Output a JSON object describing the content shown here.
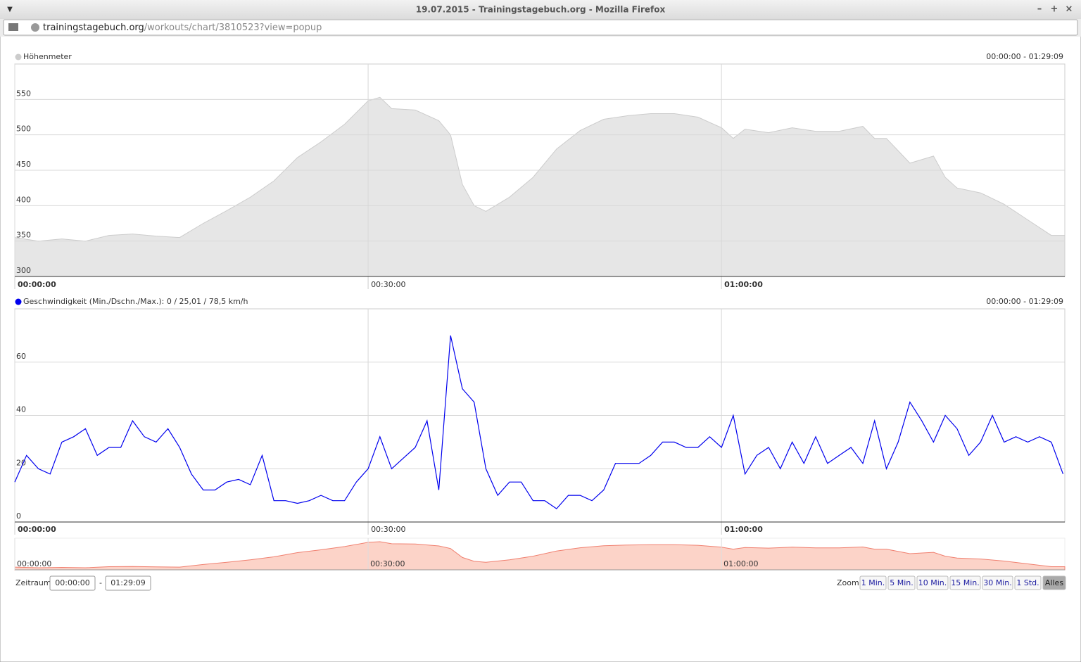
{
  "window": {
    "title": "19.07.2015 - Trainingstagebuch.org - Mozilla Firefox",
    "url_host": "trainingstagebuch.org",
    "url_path": "/workouts/chart/3810523?view=popup"
  },
  "chart_data": [
    {
      "type": "area",
      "title": "Höhenmeter",
      "range_label": "00:00:00 - 01:29:09",
      "color": "#e6e6e6",
      "line_color": "#cccccc",
      "legend_color": "#cccccc",
      "x": [
        0,
        2,
        4,
        6,
        8,
        10,
        12,
        14,
        16,
        18,
        20,
        22,
        24,
        26,
        28,
        30,
        31,
        32,
        34,
        36,
        37,
        38,
        39,
        40,
        42,
        44,
        46,
        48,
        50,
        52,
        54,
        56,
        58,
        60,
        61,
        62,
        64,
        66,
        68,
        70,
        72,
        73,
        74,
        76,
        78,
        79,
        80,
        82,
        84,
        86,
        88,
        89.15
      ],
      "values": [
        355,
        350,
        353,
        350,
        358,
        360,
        357,
        355,
        375,
        393,
        412,
        435,
        468,
        490,
        515,
        548,
        553,
        537,
        535,
        520,
        500,
        430,
        400,
        392,
        412,
        440,
        480,
        506,
        522,
        527,
        530,
        530,
        525,
        510,
        495,
        508,
        503,
        510,
        505,
        505,
        512,
        495,
        495,
        460,
        470,
        440,
        425,
        418,
        402,
        380,
        358,
        358
      ],
      "xlim": [
        0,
        89.15
      ],
      "xticks": [
        {
          "value": 0,
          "label": "00:00:00"
        },
        {
          "value": 30,
          "label": "00:30:00"
        },
        {
          "value": 60,
          "label": "01:00:00"
        }
      ],
      "ylim": [
        300,
        600
      ],
      "yticks": [
        300,
        350,
        400,
        450,
        500,
        550
      ],
      "grid": true
    },
    {
      "type": "line",
      "title": "Geschwindigkeit  (Min./Dschn./Max.): 0 / 25,01 / 78,5 km/h",
      "range_label": "00:00:00 - 01:29:09",
      "color": "#0000ee",
      "legend_color": "#0000ee",
      "x": [
        0,
        1,
        2,
        3,
        4,
        5,
        6,
        7,
        8,
        9,
        10,
        11,
        12,
        13,
        14,
        15,
        16,
        17,
        18,
        19,
        20,
        21,
        22,
        23,
        24,
        25,
        26,
        27,
        28,
        29,
        30,
        31,
        32,
        33,
        34,
        35,
        36,
        37,
        38,
        39,
        40,
        41,
        42,
        43,
        44,
        45,
        46,
        47,
        48,
        49,
        50,
        51,
        52,
        53,
        54,
        55,
        56,
        57,
        58,
        59,
        60,
        61,
        62,
        63,
        64,
        65,
        66,
        67,
        68,
        69,
        70,
        71,
        72,
        73,
        74,
        75,
        76,
        77,
        78,
        79,
        80,
        81,
        82,
        83,
        84,
        85,
        86,
        87,
        88,
        89
      ],
      "values": [
        15,
        25,
        20,
        18,
        30,
        32,
        35,
        25,
        28,
        28,
        38,
        32,
        30,
        35,
        28,
        18,
        12,
        12,
        15,
        16,
        14,
        25,
        8,
        8,
        7,
        8,
        10,
        8,
        8,
        15,
        20,
        32,
        20,
        24,
        28,
        38,
        12,
        70,
        50,
        45,
        20,
        10,
        15,
        15,
        8,
        8,
        5,
        10,
        10,
        8,
        12,
        22,
        22,
        22,
        25,
        30,
        30,
        28,
        28,
        32,
        28,
        40,
        18,
        25,
        28,
        20,
        30,
        22,
        32,
        22,
        25,
        28,
        22,
        38,
        20,
        30,
        45,
        38,
        30,
        40,
        35,
        25,
        30,
        40,
        30,
        32,
        30,
        32,
        30,
        18
      ],
      "xlim": [
        0,
        89.15
      ],
      "xticks": [
        {
          "value": 0,
          "label": "00:00:00"
        },
        {
          "value": 30,
          "label": "00:30:00"
        },
        {
          "value": 60,
          "label": "01:00:00"
        }
      ],
      "ylim": [
        0,
        80
      ],
      "yticks": [
        0,
        20,
        40,
        60
      ],
      "grid": true
    }
  ],
  "navigator": {
    "color": "#fcd3c8",
    "line_color": "#f08070"
  },
  "controls": {
    "range_label": "Zeitraum:",
    "from": "00:00:00",
    "separator": "-",
    "to": "01:29:09",
    "zoom_label": "Zoom:",
    "zoom_buttons": [
      "1 Min.",
      "5 Min.",
      "10 Min.",
      "15 Min.",
      "30 Min.",
      "1 Std.",
      "Alles"
    ],
    "active_zoom": 6
  }
}
